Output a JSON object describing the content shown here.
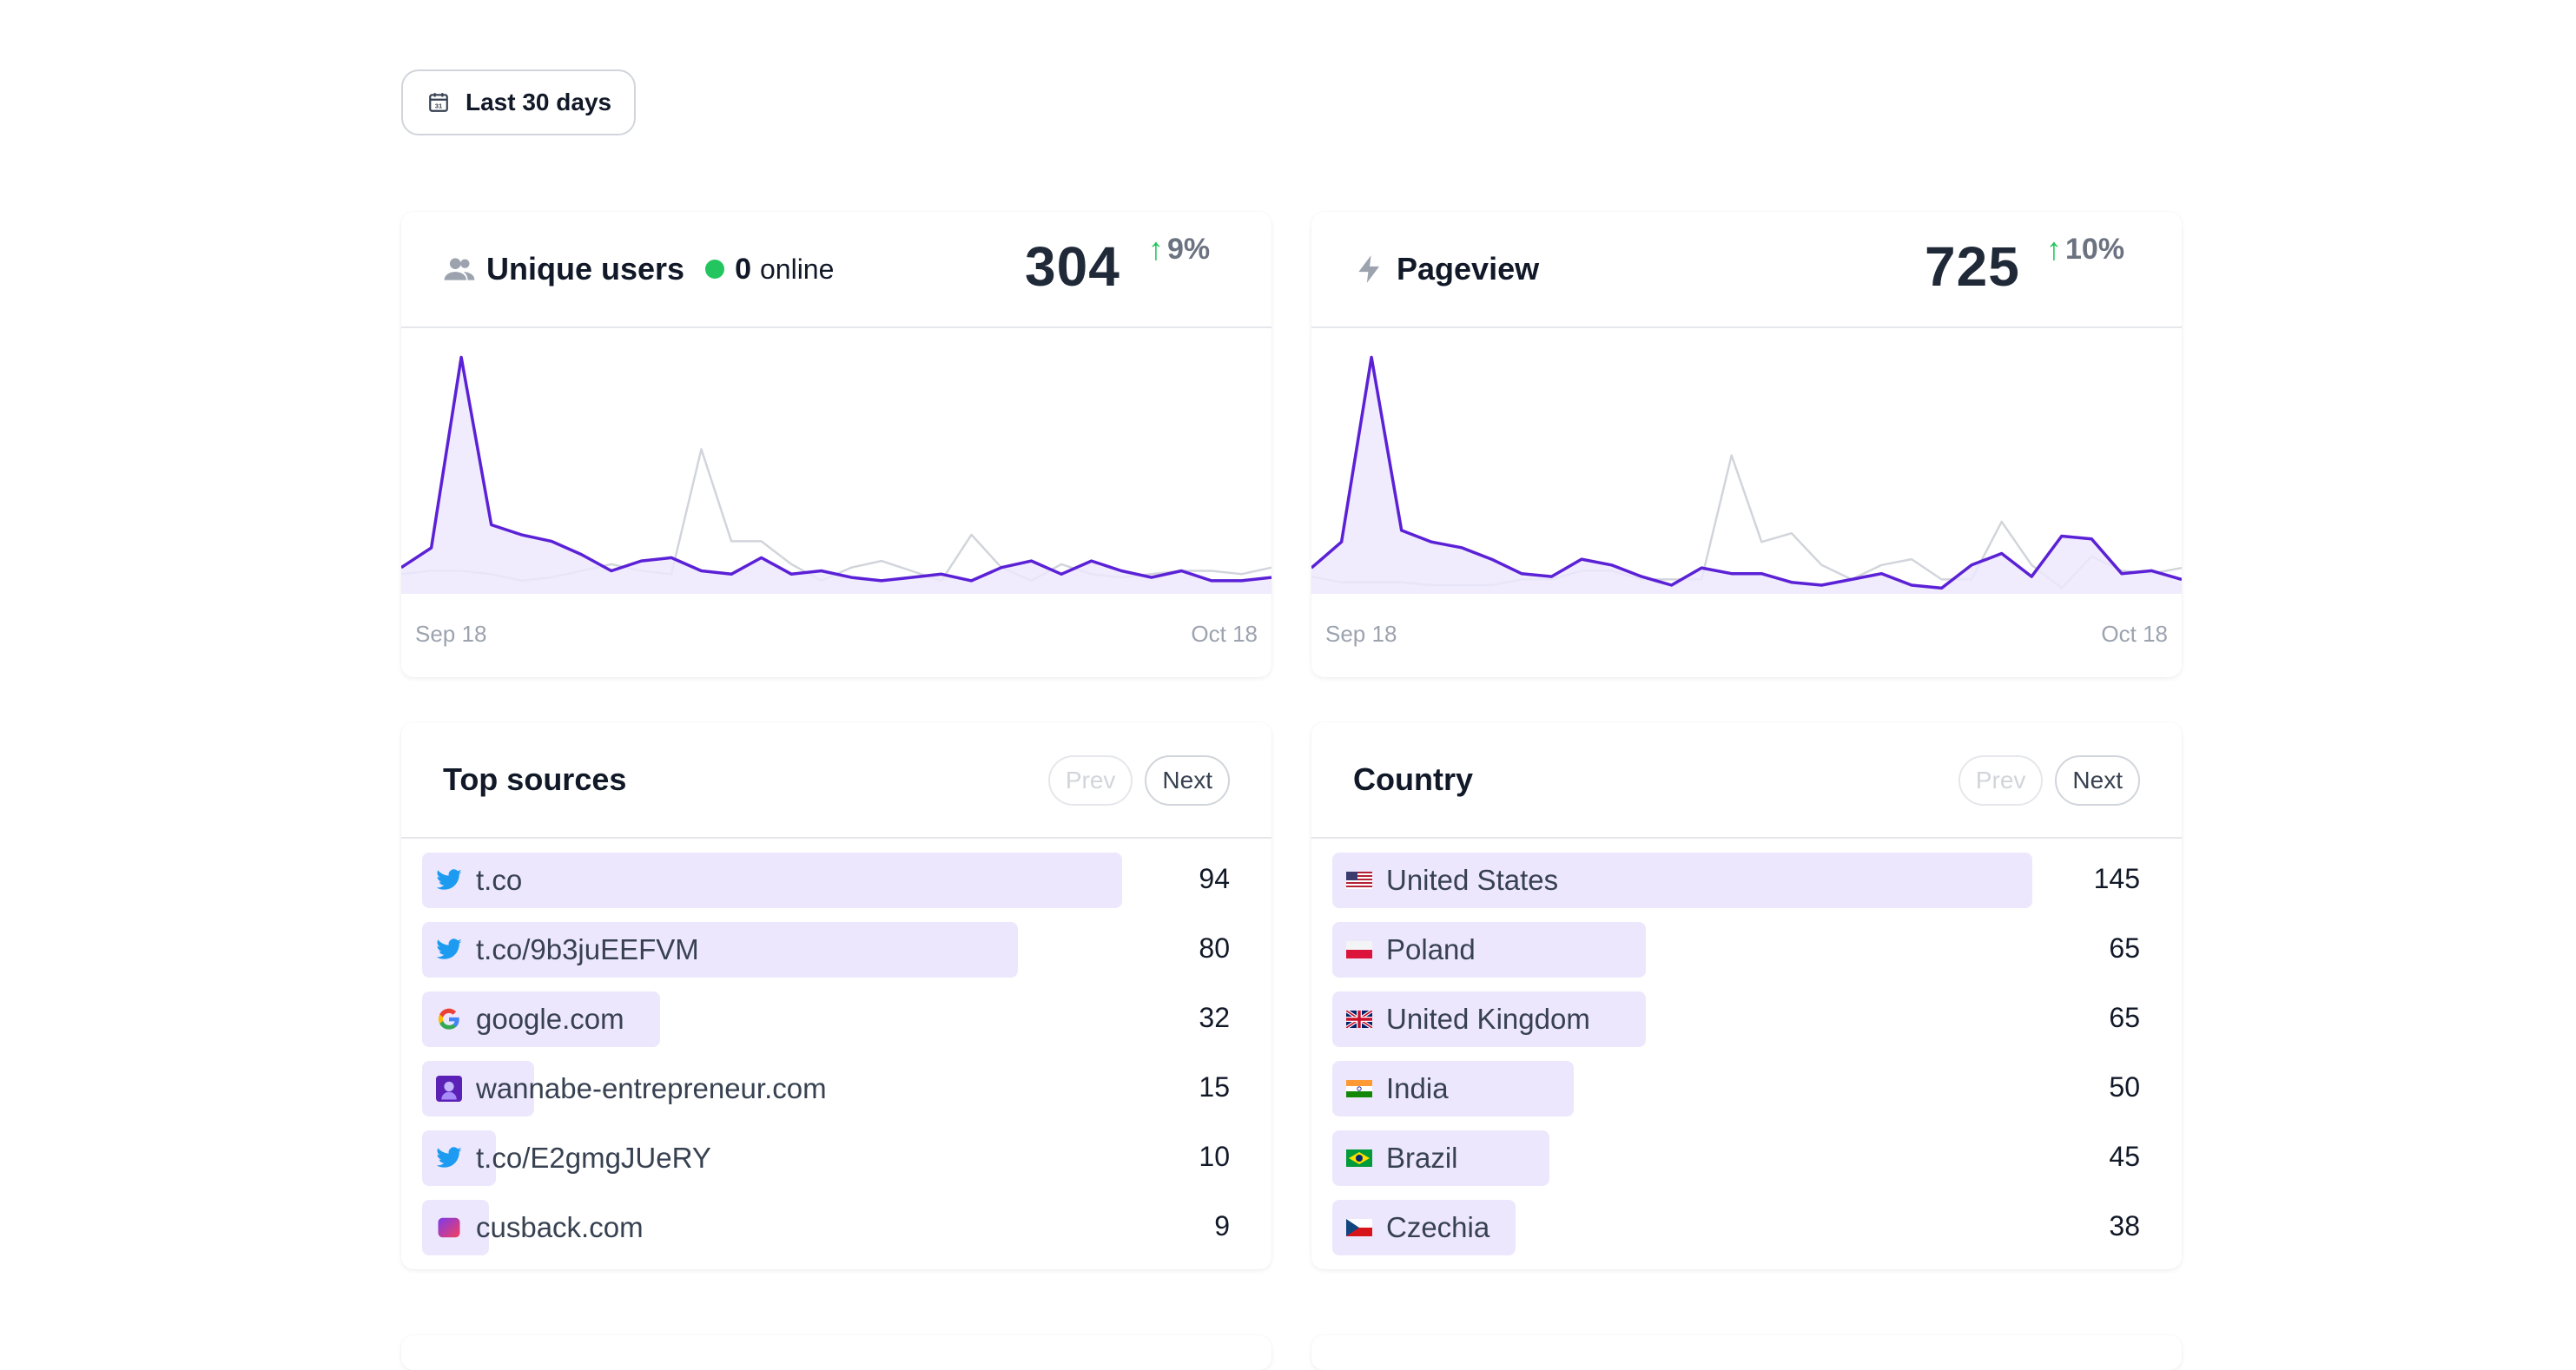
{
  "date_range": {
    "label": "Last 30 days",
    "icon": "calendar-icon"
  },
  "unique_users": {
    "title": "Unique users",
    "icon": "users-icon",
    "online_count": "0",
    "online_label": "online",
    "value": "304",
    "delta": "9%",
    "delta_color": "#22c55e",
    "start_label": "Sep 18",
    "end_label": "Oct 18",
    "chart_data": {
      "type": "area",
      "series": [
        {
          "color": "#5b21d6",
          "values": [
            8,
            14,
            72,
            21,
            18,
            16,
            12,
            7,
            10,
            11,
            7,
            6,
            11,
            6,
            7,
            5,
            4,
            5,
            6,
            4,
            8,
            10,
            6,
            10,
            7,
            5,
            7,
            4,
            4,
            5
          ]
        },
        {
          "color": "#d1d5db",
          "values": [
            6,
            7,
            7,
            6,
            4,
            5,
            7,
            9,
            7,
            6,
            44,
            16,
            16,
            9,
            4,
            8,
            10,
            7,
            4,
            18,
            8,
            4,
            9,
            6,
            5,
            6,
            7,
            7,
            6,
            8
          ]
        }
      ]
    }
  },
  "pageview": {
    "title": "Pageview",
    "icon": "bolt-icon",
    "value": "725",
    "delta": "10%",
    "delta_color": "#22c55e",
    "start_label": "Sep 18",
    "end_label": "Oct 18",
    "chart_data": {
      "type": "area",
      "series": [
        {
          "color": "#5b21d6",
          "values": [
            9,
            18,
            82,
            22,
            18,
            16,
            12,
            7,
            6,
            12,
            10,
            6,
            3,
            9,
            7,
            7,
            4,
            3,
            5,
            7,
            3,
            2,
            10,
            14,
            6,
            20,
            19,
            7,
            8,
            5
          ]
        },
        {
          "color": "#d1d5db",
          "values": [
            6,
            4,
            4,
            4,
            3,
            3,
            3,
            5,
            5,
            8,
            8,
            5,
            5,
            5,
            48,
            18,
            21,
            10,
            5,
            10,
            12,
            5,
            5,
            25,
            10,
            2,
            13,
            8,
            7,
            9
          ]
        }
      ]
    }
  },
  "top_sources": {
    "title": "Top sources",
    "prev_label": "Prev",
    "next_label": "Next",
    "rows": [
      {
        "label": "t.co",
        "value": "94",
        "icon": "twitter-icon",
        "fraction": 1.0
      },
      {
        "label": "t.co/9b3juEEFVM",
        "value": "80",
        "icon": "twitter-icon",
        "fraction": 0.851
      },
      {
        "label": "google.com",
        "value": "32",
        "icon": "google-icon",
        "fraction": 0.34
      },
      {
        "label": "wannabe-entrepreneur.com",
        "value": "15",
        "icon": "wannabe-icon",
        "fraction": 0.16
      },
      {
        "label": "t.co/E2gmgJUeRY",
        "value": "10",
        "icon": "twitter-icon",
        "fraction": 0.106
      },
      {
        "label": "cusback.com",
        "value": "9",
        "icon": "cusback-icon",
        "fraction": 0.096
      }
    ]
  },
  "country": {
    "title": "Country",
    "prev_label": "Prev",
    "next_label": "Next",
    "rows": [
      {
        "label": "United States",
        "value": "145",
        "icon": "us-flag-icon",
        "fraction": 1.0
      },
      {
        "label": "Poland",
        "value": "65",
        "icon": "poland-flag-icon",
        "fraction": 0.448
      },
      {
        "label": "United Kingdom",
        "value": "65",
        "icon": "uk-flag-icon",
        "fraction": 0.448
      },
      {
        "label": "India",
        "value": "50",
        "icon": "india-flag-icon",
        "fraction": 0.345
      },
      {
        "label": "Brazil",
        "value": "45",
        "icon": "brazil-flag-icon",
        "fraction": 0.31
      },
      {
        "label": "Czechia",
        "value": "38",
        "icon": "czechia-flag-icon",
        "fraction": 0.262
      }
    ]
  }
}
